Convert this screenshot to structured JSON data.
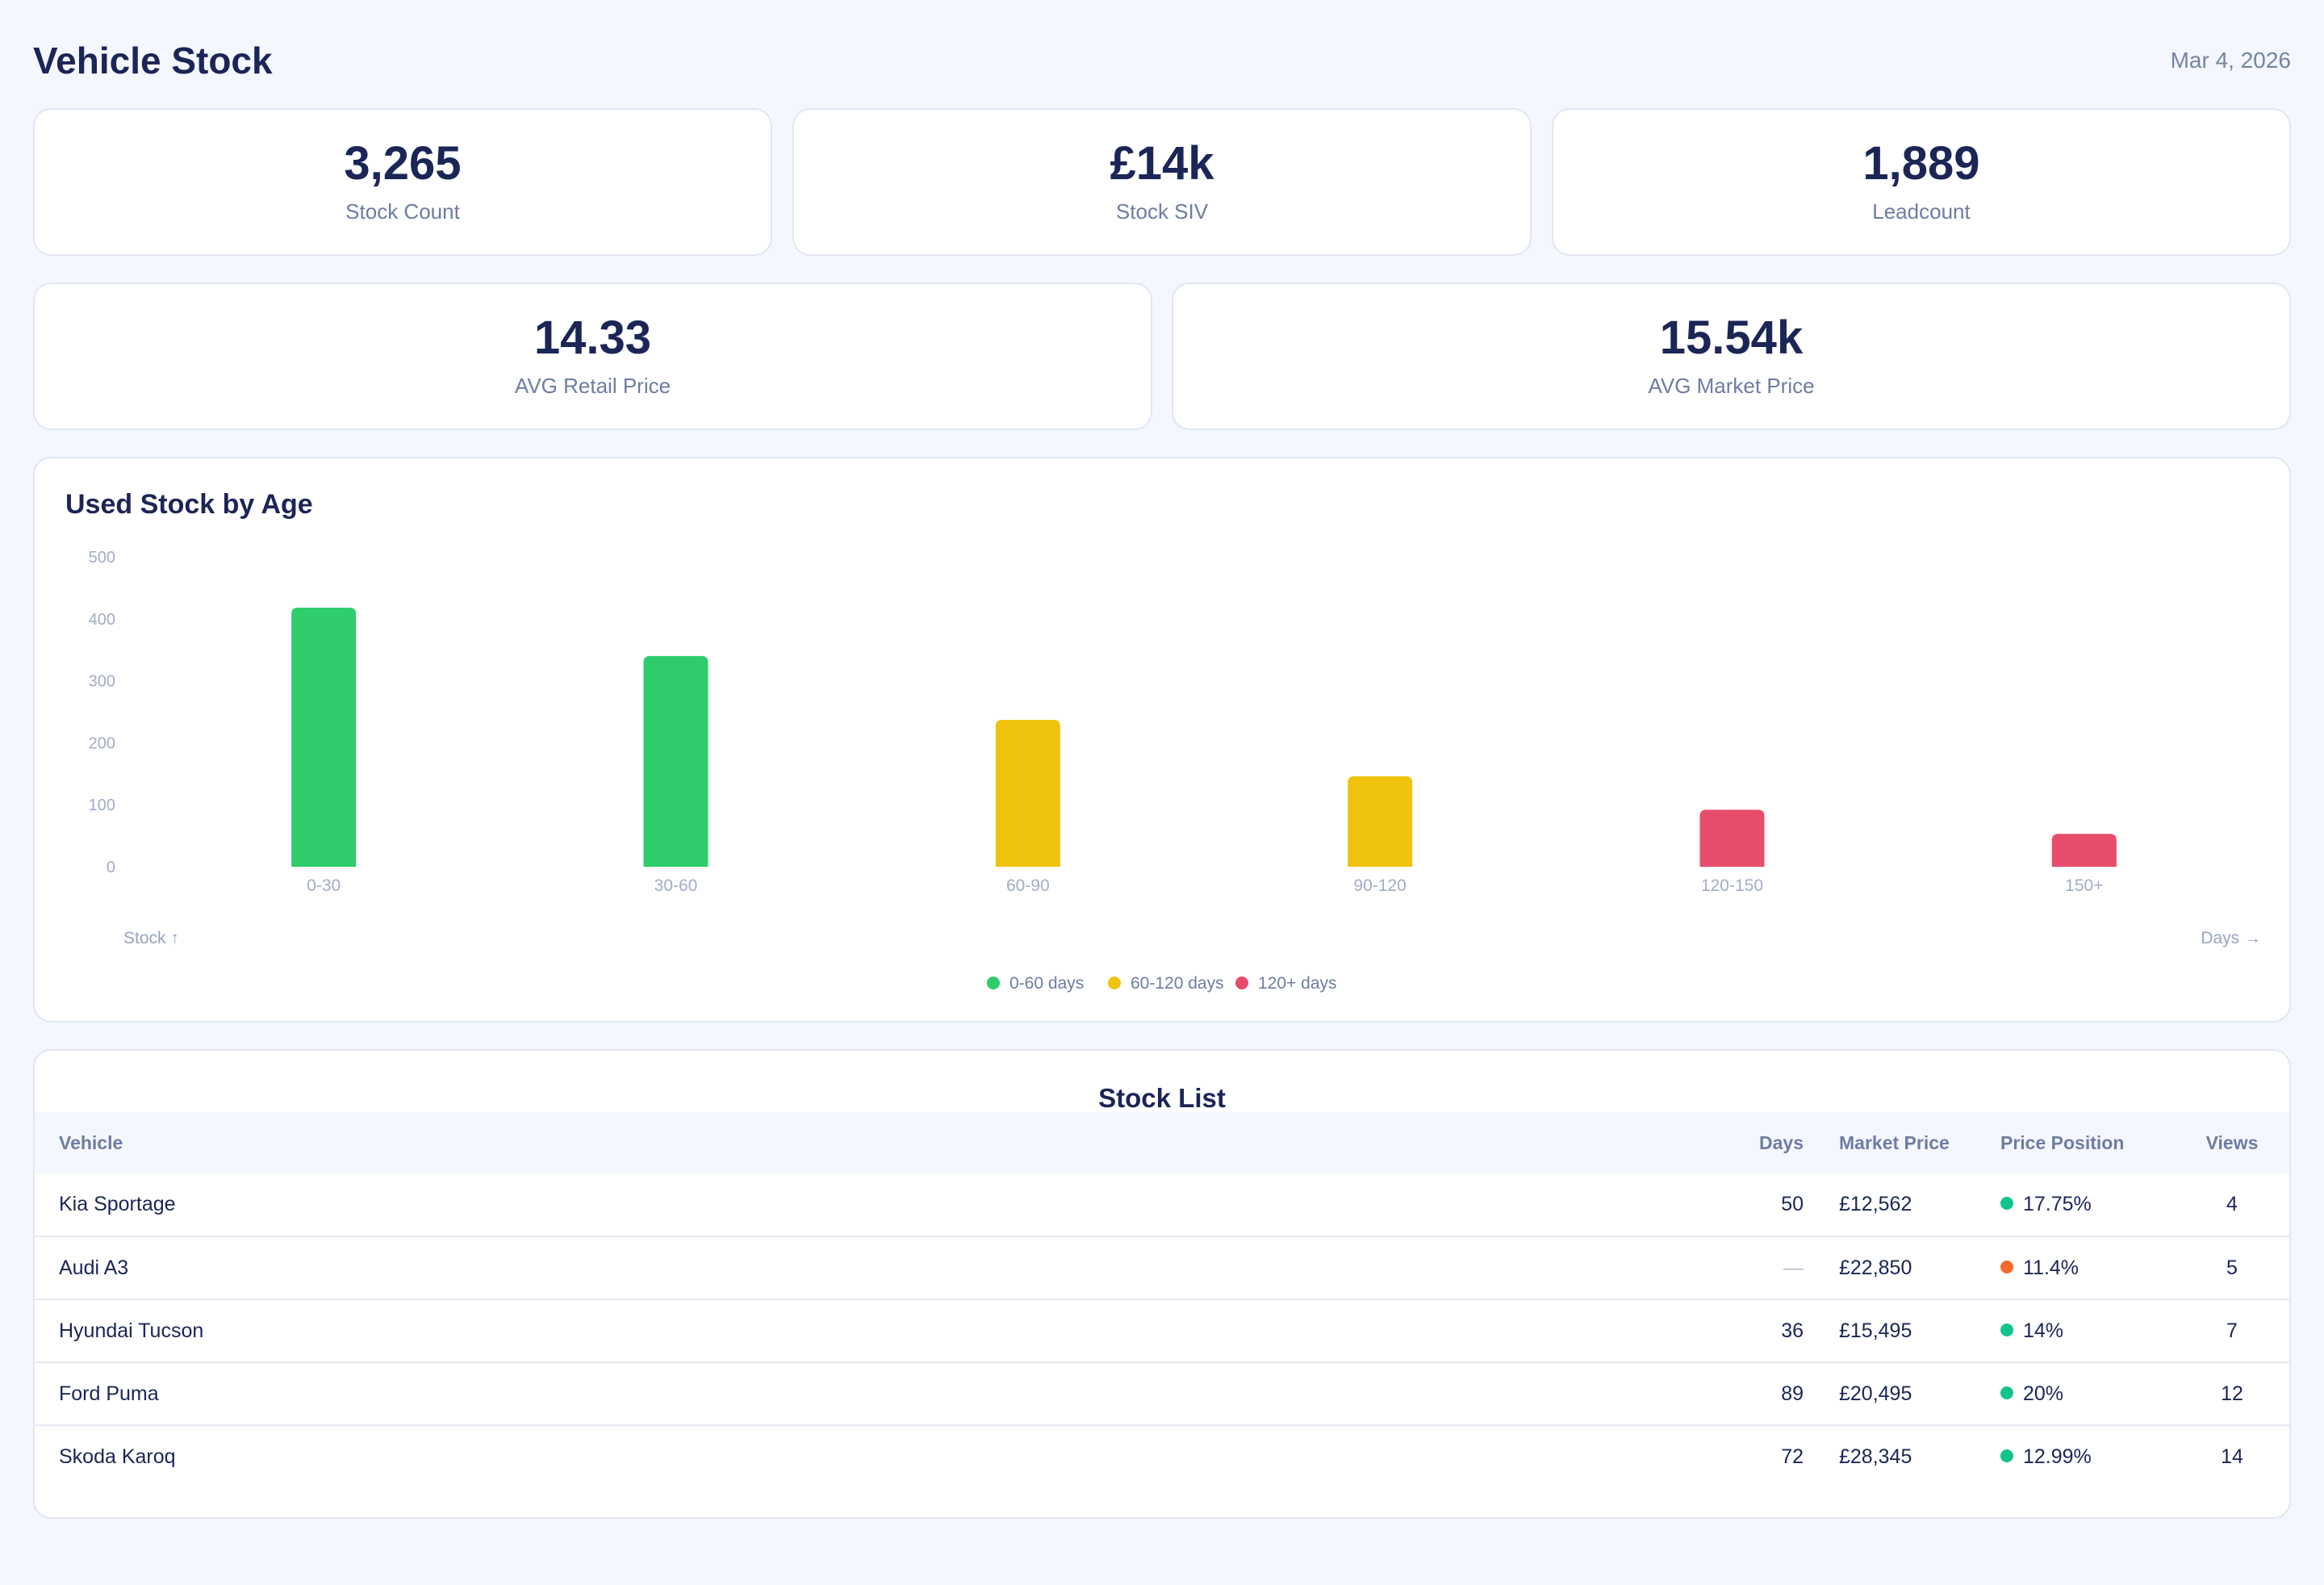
{
  "header": {
    "title": "Vehicle Stock",
    "date": "Mar 4, 2026"
  },
  "kpis": [
    {
      "value": "3,265",
      "label": "Stock Count"
    },
    {
      "value": "£14k",
      "label": "Stock SIV"
    },
    {
      "value": "1,889",
      "label": "Leadcount"
    },
    {
      "value": "14.33",
      "label": "AVG Retail Price"
    },
    {
      "value": "15.54k",
      "label": "AVG Market Price"
    }
  ],
  "chart": {
    "title": "Used Stock by Age",
    "y_axis_label": "Stock ↑",
    "x_axis_label": "Days →"
  },
  "chart_data": {
    "type": "bar",
    "title": "Used Stock by Age",
    "xlabel": "Days →",
    "ylabel": "Stock ↑",
    "categories": [
      "0-30",
      "30-60",
      "60-90",
      "90-120",
      "120-150",
      "150+"
    ],
    "values": [
      418,
      340,
      237,
      146,
      92,
      53
    ],
    "bar_groups": [
      "0-60 days",
      "0-60 days",
      "60-120 days",
      "60-120 days",
      "120+ days",
      "120+ days"
    ],
    "ylim": [
      0,
      500
    ],
    "yticks": [
      0,
      100,
      200,
      300,
      400,
      500
    ],
    "grid": false,
    "legend": [
      {
        "label": "0-60 days",
        "color": "#2ecc6b"
      },
      {
        "label": "60-120 days",
        "color": "#f0c30f"
      },
      {
        "label": "120+ days",
        "color": "#e74c6c"
      }
    ],
    "legend_position": "bottom-center"
  },
  "stock_list": {
    "title": "Stock List",
    "columns": {
      "vehicle": "Vehicle",
      "days": "Days",
      "market_price": "Market Price",
      "price_position": "Price Position",
      "views": "Views"
    },
    "rows": [
      {
        "vehicle": "Kia Sportage",
        "days": "50",
        "market_price": "£12,562",
        "price_position": "17.75%",
        "status_color": "#12c48b",
        "views": "4"
      },
      {
        "vehicle": "Audi A3",
        "days": "—",
        "market_price": "£22,850",
        "price_position": "11.4%",
        "status_color": "#f26a2e",
        "views": "5"
      },
      {
        "vehicle": "Hyundai Tucson",
        "days": "36",
        "market_price": "£15,495",
        "price_position": "14%",
        "status_color": "#12c48b",
        "views": "7"
      },
      {
        "vehicle": "Ford Puma",
        "days": "89",
        "market_price": "£20,495",
        "price_position": "20%",
        "status_color": "#12c48b",
        "views": "12"
      },
      {
        "vehicle": "Skoda Karoq",
        "days": "72",
        "market_price": "£28,345",
        "price_position": "12.99%",
        "status_color": "#12c48b",
        "views": "14"
      }
    ]
  }
}
